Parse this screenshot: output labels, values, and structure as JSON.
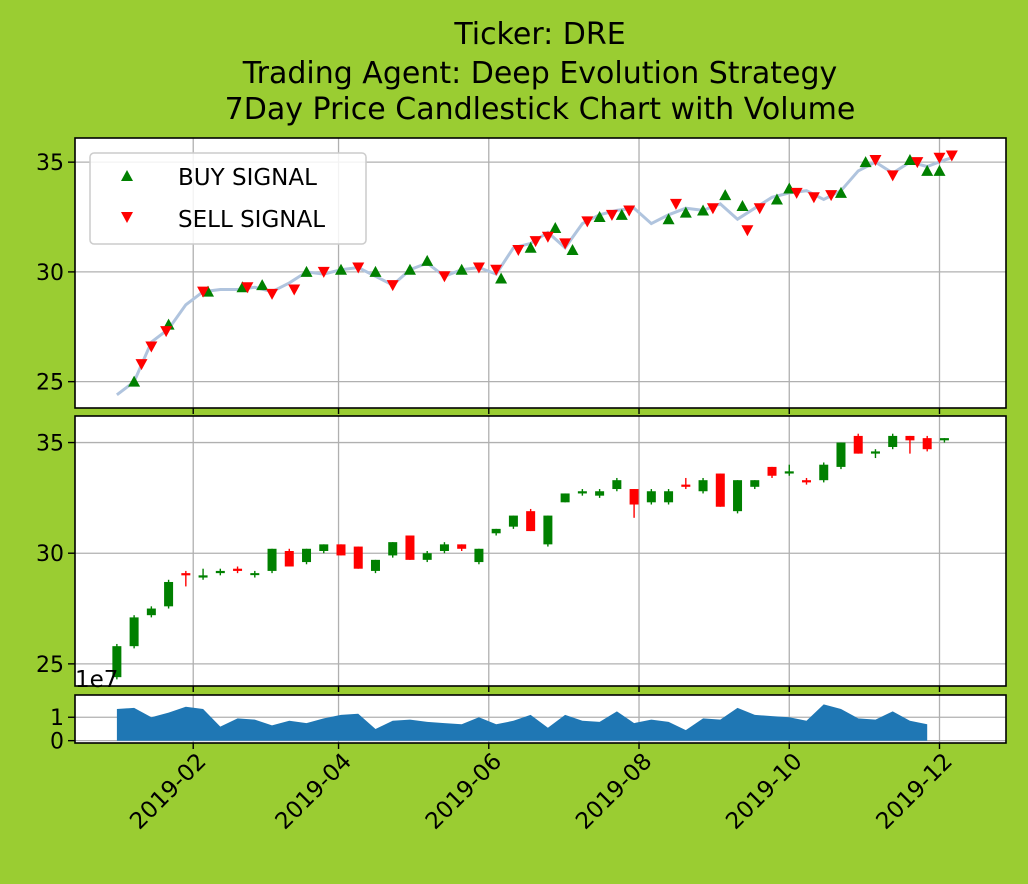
{
  "chart_data": {
    "title_lines": [
      "Ticker: DRE",
      "Trading Agent: Deep Evolution Strategy",
      "7Day Price Candlestick Chart with Volume"
    ],
    "x_ticks": [
      "2019-02",
      "2019-04",
      "2019-06",
      "2019-08",
      "2019-10",
      "2019-12"
    ],
    "colors": {
      "background": "#9acd32",
      "buy": "#008000",
      "sell": "#ff0000",
      "price_line": "#b0c4de",
      "volume": "#1f77b4",
      "grid": "#b0b0b0"
    },
    "panels": [
      {
        "id": "signals",
        "type": "line",
        "ylim": [
          23.8,
          36.1
        ],
        "y_ticks": [
          25,
          30,
          35
        ],
        "legend": {
          "position": "top-left",
          "entries": [
            "BUY SIGNAL",
            "SELL SIGNAL"
          ]
        },
        "price_line": [
          [
            "2019-01-01",
            24.4
          ],
          [
            "2019-01-08",
            25.0
          ],
          [
            "2019-01-15",
            26.8
          ],
          [
            "2019-01-22",
            27.4
          ],
          [
            "2019-01-29",
            28.5
          ],
          [
            "2019-02-05",
            29.1
          ],
          [
            "2019-02-12",
            29.2
          ],
          [
            "2019-02-19",
            29.2
          ],
          [
            "2019-02-26",
            29.3
          ],
          [
            "2019-03-05",
            29.1
          ],
          [
            "2019-03-12",
            29.5
          ],
          [
            "2019-03-19",
            30.0
          ],
          [
            "2019-03-26",
            29.9
          ],
          [
            "2019-04-02",
            30.1
          ],
          [
            "2019-04-09",
            30.2
          ],
          [
            "2019-04-16",
            29.8
          ],
          [
            "2019-04-23",
            29.4
          ],
          [
            "2019-04-30",
            30.1
          ],
          [
            "2019-05-07",
            30.4
          ],
          [
            "2019-05-14",
            29.8
          ],
          [
            "2019-05-21",
            30.1
          ],
          [
            "2019-05-28",
            30.2
          ],
          [
            "2019-06-04",
            29.9
          ],
          [
            "2019-06-11",
            31.1
          ],
          [
            "2019-06-18",
            31.3
          ],
          [
            "2019-06-25",
            31.8
          ],
          [
            "2019-07-02",
            31.1
          ],
          [
            "2019-07-09",
            32.2
          ],
          [
            "2019-07-16",
            32.6
          ],
          [
            "2019-07-23",
            32.8
          ],
          [
            "2019-07-30",
            32.9
          ],
          [
            "2019-08-06",
            32.2
          ],
          [
            "2019-08-13",
            32.6
          ],
          [
            "2019-08-20",
            32.9
          ],
          [
            "2019-08-27",
            32.8
          ],
          [
            "2019-09-03",
            33.1
          ],
          [
            "2019-09-10",
            32.4
          ],
          [
            "2019-09-17",
            32.9
          ],
          [
            "2019-09-24",
            33.4
          ],
          [
            "2019-10-01",
            33.6
          ],
          [
            "2019-10-08",
            33.7
          ],
          [
            "2019-10-15",
            33.3
          ],
          [
            "2019-10-22",
            33.7
          ],
          [
            "2019-10-29",
            34.6
          ],
          [
            "2019-11-05",
            35.0
          ],
          [
            "2019-11-12",
            34.5
          ],
          [
            "2019-11-19",
            35.0
          ],
          [
            "2019-11-26",
            34.8
          ],
          [
            "2019-12-03",
            35.1
          ],
          [
            "2019-12-06",
            35.2
          ]
        ],
        "buy_signals": [
          [
            "2019-01-08",
            25.0
          ],
          [
            "2019-01-22",
            27.6
          ],
          [
            "2019-02-07",
            29.1
          ],
          [
            "2019-02-21",
            29.3
          ],
          [
            "2019-03-01",
            29.4
          ],
          [
            "2019-03-19",
            30.0
          ],
          [
            "2019-04-02",
            30.1
          ],
          [
            "2019-04-16",
            30.0
          ],
          [
            "2019-04-30",
            30.1
          ],
          [
            "2019-05-07",
            30.5
          ],
          [
            "2019-05-21",
            30.1
          ],
          [
            "2019-06-06",
            29.7
          ],
          [
            "2019-06-18",
            31.1
          ],
          [
            "2019-06-28",
            32.0
          ],
          [
            "2019-07-05",
            31.0
          ],
          [
            "2019-07-16",
            32.5
          ],
          [
            "2019-07-25",
            32.6
          ],
          [
            "2019-08-13",
            32.4
          ],
          [
            "2019-08-20",
            32.7
          ],
          [
            "2019-08-27",
            32.8
          ],
          [
            "2019-09-05",
            33.5
          ],
          [
            "2019-09-12",
            33.0
          ],
          [
            "2019-09-26",
            33.3
          ],
          [
            "2019-10-01",
            33.8
          ],
          [
            "2019-10-22",
            33.6
          ],
          [
            "2019-11-01",
            35.0
          ],
          [
            "2019-11-19",
            35.1
          ],
          [
            "2019-11-26",
            34.6
          ],
          [
            "2019-12-01",
            34.6
          ]
        ],
        "sell_signals": [
          [
            "2019-01-11",
            25.8
          ],
          [
            "2019-01-15",
            26.6
          ],
          [
            "2019-01-21",
            27.3
          ],
          [
            "2019-02-05",
            29.1
          ],
          [
            "2019-02-23",
            29.3
          ],
          [
            "2019-03-05",
            29.0
          ],
          [
            "2019-03-14",
            29.2
          ],
          [
            "2019-03-26",
            30.0
          ],
          [
            "2019-04-09",
            30.2
          ],
          [
            "2019-04-23",
            29.4
          ],
          [
            "2019-05-14",
            29.8
          ],
          [
            "2019-05-28",
            30.2
          ],
          [
            "2019-06-04",
            30.1
          ],
          [
            "2019-06-13",
            31.0
          ],
          [
            "2019-06-20",
            31.4
          ],
          [
            "2019-06-25",
            31.6
          ],
          [
            "2019-07-02",
            31.3
          ],
          [
            "2019-07-11",
            32.3
          ],
          [
            "2019-07-21",
            32.6
          ],
          [
            "2019-07-28",
            32.8
          ],
          [
            "2019-08-16",
            33.1
          ],
          [
            "2019-08-31",
            32.9
          ],
          [
            "2019-09-14",
            31.9
          ],
          [
            "2019-09-19",
            32.9
          ],
          [
            "2019-10-04",
            33.6
          ],
          [
            "2019-10-11",
            33.4
          ],
          [
            "2019-10-18",
            33.5
          ],
          [
            "2019-11-05",
            35.1
          ],
          [
            "2019-11-12",
            34.4
          ],
          [
            "2019-11-22",
            35.0
          ],
          [
            "2019-12-01",
            35.2
          ],
          [
            "2019-12-06",
            35.3
          ]
        ]
      },
      {
        "id": "candles",
        "type": "candlestick",
        "ylim": [
          24.0,
          36.2
        ],
        "y_ticks": [
          25,
          30,
          35
        ],
        "candles": [
          [
            "2019-01-01",
            24.4,
            25.9,
            24.3,
            25.8
          ],
          [
            "2019-01-08",
            25.8,
            27.2,
            25.7,
            27.1
          ],
          [
            "2019-01-15",
            27.2,
            27.6,
            27.1,
            27.5
          ],
          [
            "2019-01-22",
            27.6,
            28.8,
            27.5,
            28.7
          ],
          [
            "2019-01-29",
            29.1,
            29.2,
            28.5,
            29.0
          ],
          [
            "2019-02-05",
            28.9,
            29.3,
            28.8,
            29.0
          ],
          [
            "2019-02-12",
            29.1,
            29.3,
            29.0,
            29.2
          ],
          [
            "2019-02-19",
            29.3,
            29.4,
            29.1,
            29.2
          ],
          [
            "2019-02-26",
            29.1,
            29.2,
            28.9,
            29.1
          ],
          [
            "2019-03-05",
            29.2,
            30.2,
            29.1,
            30.2
          ],
          [
            "2019-03-12",
            30.1,
            30.2,
            29.4,
            29.4
          ],
          [
            "2019-03-19",
            29.6,
            30.2,
            29.5,
            30.2
          ],
          [
            "2019-03-26",
            30.1,
            30.4,
            30.0,
            30.4
          ],
          [
            "2019-04-02",
            30.4,
            30.4,
            29.9,
            29.9
          ],
          [
            "2019-04-09",
            30.3,
            30.3,
            29.3,
            29.3
          ],
          [
            "2019-04-16",
            29.2,
            29.7,
            29.1,
            29.7
          ],
          [
            "2019-04-23",
            29.9,
            30.5,
            29.8,
            30.5
          ],
          [
            "2019-04-30",
            30.8,
            30.8,
            29.7,
            29.7
          ],
          [
            "2019-05-07",
            29.7,
            30.1,
            29.6,
            30.0
          ],
          [
            "2019-05-14",
            30.1,
            30.5,
            30.0,
            30.4
          ],
          [
            "2019-05-21",
            30.4,
            30.4,
            30.1,
            30.2
          ],
          [
            "2019-05-28",
            29.6,
            30.2,
            29.5,
            30.2
          ],
          [
            "2019-06-04",
            30.9,
            31.1,
            30.8,
            31.1
          ],
          [
            "2019-06-11",
            31.2,
            31.7,
            31.1,
            31.7
          ],
          [
            "2019-06-18",
            31.9,
            32.0,
            31.0,
            31.0
          ],
          [
            "2019-06-25",
            30.4,
            31.7,
            30.3,
            31.7
          ],
          [
            "2019-07-02",
            32.3,
            32.7,
            32.3,
            32.7
          ],
          [
            "2019-07-09",
            32.7,
            32.9,
            32.6,
            32.8
          ],
          [
            "2019-07-16",
            32.6,
            32.9,
            32.5,
            32.8
          ],
          [
            "2019-07-23",
            32.9,
            33.4,
            32.8,
            33.3
          ],
          [
            "2019-07-30",
            32.9,
            32.9,
            31.6,
            32.2
          ],
          [
            "2019-08-06",
            32.3,
            32.9,
            32.2,
            32.8
          ],
          [
            "2019-08-13",
            32.3,
            32.9,
            32.2,
            32.8
          ],
          [
            "2019-08-20",
            33.1,
            33.4,
            32.9,
            33.0
          ],
          [
            "2019-08-27",
            32.8,
            33.4,
            32.7,
            33.3
          ],
          [
            "2019-09-03",
            33.6,
            33.6,
            32.1,
            32.1
          ],
          [
            "2019-09-10",
            31.9,
            33.3,
            31.8,
            33.3
          ],
          [
            "2019-09-17",
            33.0,
            33.3,
            32.9,
            33.3
          ],
          [
            "2019-09-24",
            33.9,
            33.9,
            33.4,
            33.5
          ],
          [
            "2019-10-01",
            33.6,
            34.0,
            33.5,
            33.7
          ],
          [
            "2019-10-08",
            33.3,
            33.4,
            33.1,
            33.2
          ],
          [
            "2019-10-15",
            33.3,
            34.1,
            33.2,
            34.0
          ],
          [
            "2019-10-22",
            33.9,
            35.0,
            33.8,
            35.0
          ],
          [
            "2019-10-29",
            35.3,
            35.4,
            34.5,
            34.5
          ],
          [
            "2019-11-05",
            34.5,
            34.7,
            34.3,
            34.6
          ],
          [
            "2019-11-12",
            34.8,
            35.4,
            34.7,
            35.3
          ],
          [
            "2019-11-19",
            35.3,
            35.3,
            34.5,
            35.1
          ],
          [
            "2019-11-26",
            35.2,
            35.3,
            34.6,
            34.7
          ],
          [
            "2019-12-03",
            35.1,
            35.2,
            35.0,
            35.2
          ]
        ]
      },
      {
        "id": "volume",
        "type": "area",
        "y_multiplier_label": "1e7",
        "ylim": [
          -0.1,
          1.95
        ],
        "y_ticks": [
          0,
          1
        ],
        "volume": [
          [
            "2019-01-01",
            1.35
          ],
          [
            "2019-01-08",
            1.4
          ],
          [
            "2019-01-15",
            1.0
          ],
          [
            "2019-01-22",
            1.2
          ],
          [
            "2019-01-29",
            1.45
          ],
          [
            "2019-02-05",
            1.35
          ],
          [
            "2019-02-12",
            0.6
          ],
          [
            "2019-02-19",
            0.95
          ],
          [
            "2019-02-26",
            0.9
          ],
          [
            "2019-03-05",
            0.65
          ],
          [
            "2019-03-12",
            0.85
          ],
          [
            "2019-03-19",
            0.75
          ],
          [
            "2019-03-26",
            0.95
          ],
          [
            "2019-04-02",
            1.1
          ],
          [
            "2019-04-09",
            1.15
          ],
          [
            "2019-04-16",
            0.5
          ],
          [
            "2019-04-23",
            0.85
          ],
          [
            "2019-04-30",
            0.9
          ],
          [
            "2019-05-07",
            0.8
          ],
          [
            "2019-05-14",
            0.75
          ],
          [
            "2019-05-21",
            0.7
          ],
          [
            "2019-05-28",
            1.0
          ],
          [
            "2019-06-04",
            0.7
          ],
          [
            "2019-06-11",
            0.85
          ],
          [
            "2019-06-18",
            1.1
          ],
          [
            "2019-06-25",
            0.55
          ],
          [
            "2019-07-02",
            1.1
          ],
          [
            "2019-07-09",
            0.85
          ],
          [
            "2019-07-16",
            0.8
          ],
          [
            "2019-07-23",
            1.25
          ],
          [
            "2019-07-30",
            0.75
          ],
          [
            "2019-08-06",
            0.9
          ],
          [
            "2019-08-13",
            0.8
          ],
          [
            "2019-08-20",
            0.45
          ],
          [
            "2019-08-27",
            0.95
          ],
          [
            "2019-09-03",
            0.9
          ],
          [
            "2019-09-10",
            1.4
          ],
          [
            "2019-09-17",
            1.1
          ],
          [
            "2019-09-24",
            1.05
          ],
          [
            "2019-10-01",
            1.0
          ],
          [
            "2019-10-08",
            0.85
          ],
          [
            "2019-10-15",
            1.55
          ],
          [
            "2019-10-22",
            1.35
          ],
          [
            "2019-10-29",
            0.95
          ],
          [
            "2019-11-05",
            0.9
          ],
          [
            "2019-11-12",
            1.25
          ],
          [
            "2019-11-19",
            0.85
          ],
          [
            "2019-11-26",
            0.7
          ]
        ]
      }
    ]
  }
}
